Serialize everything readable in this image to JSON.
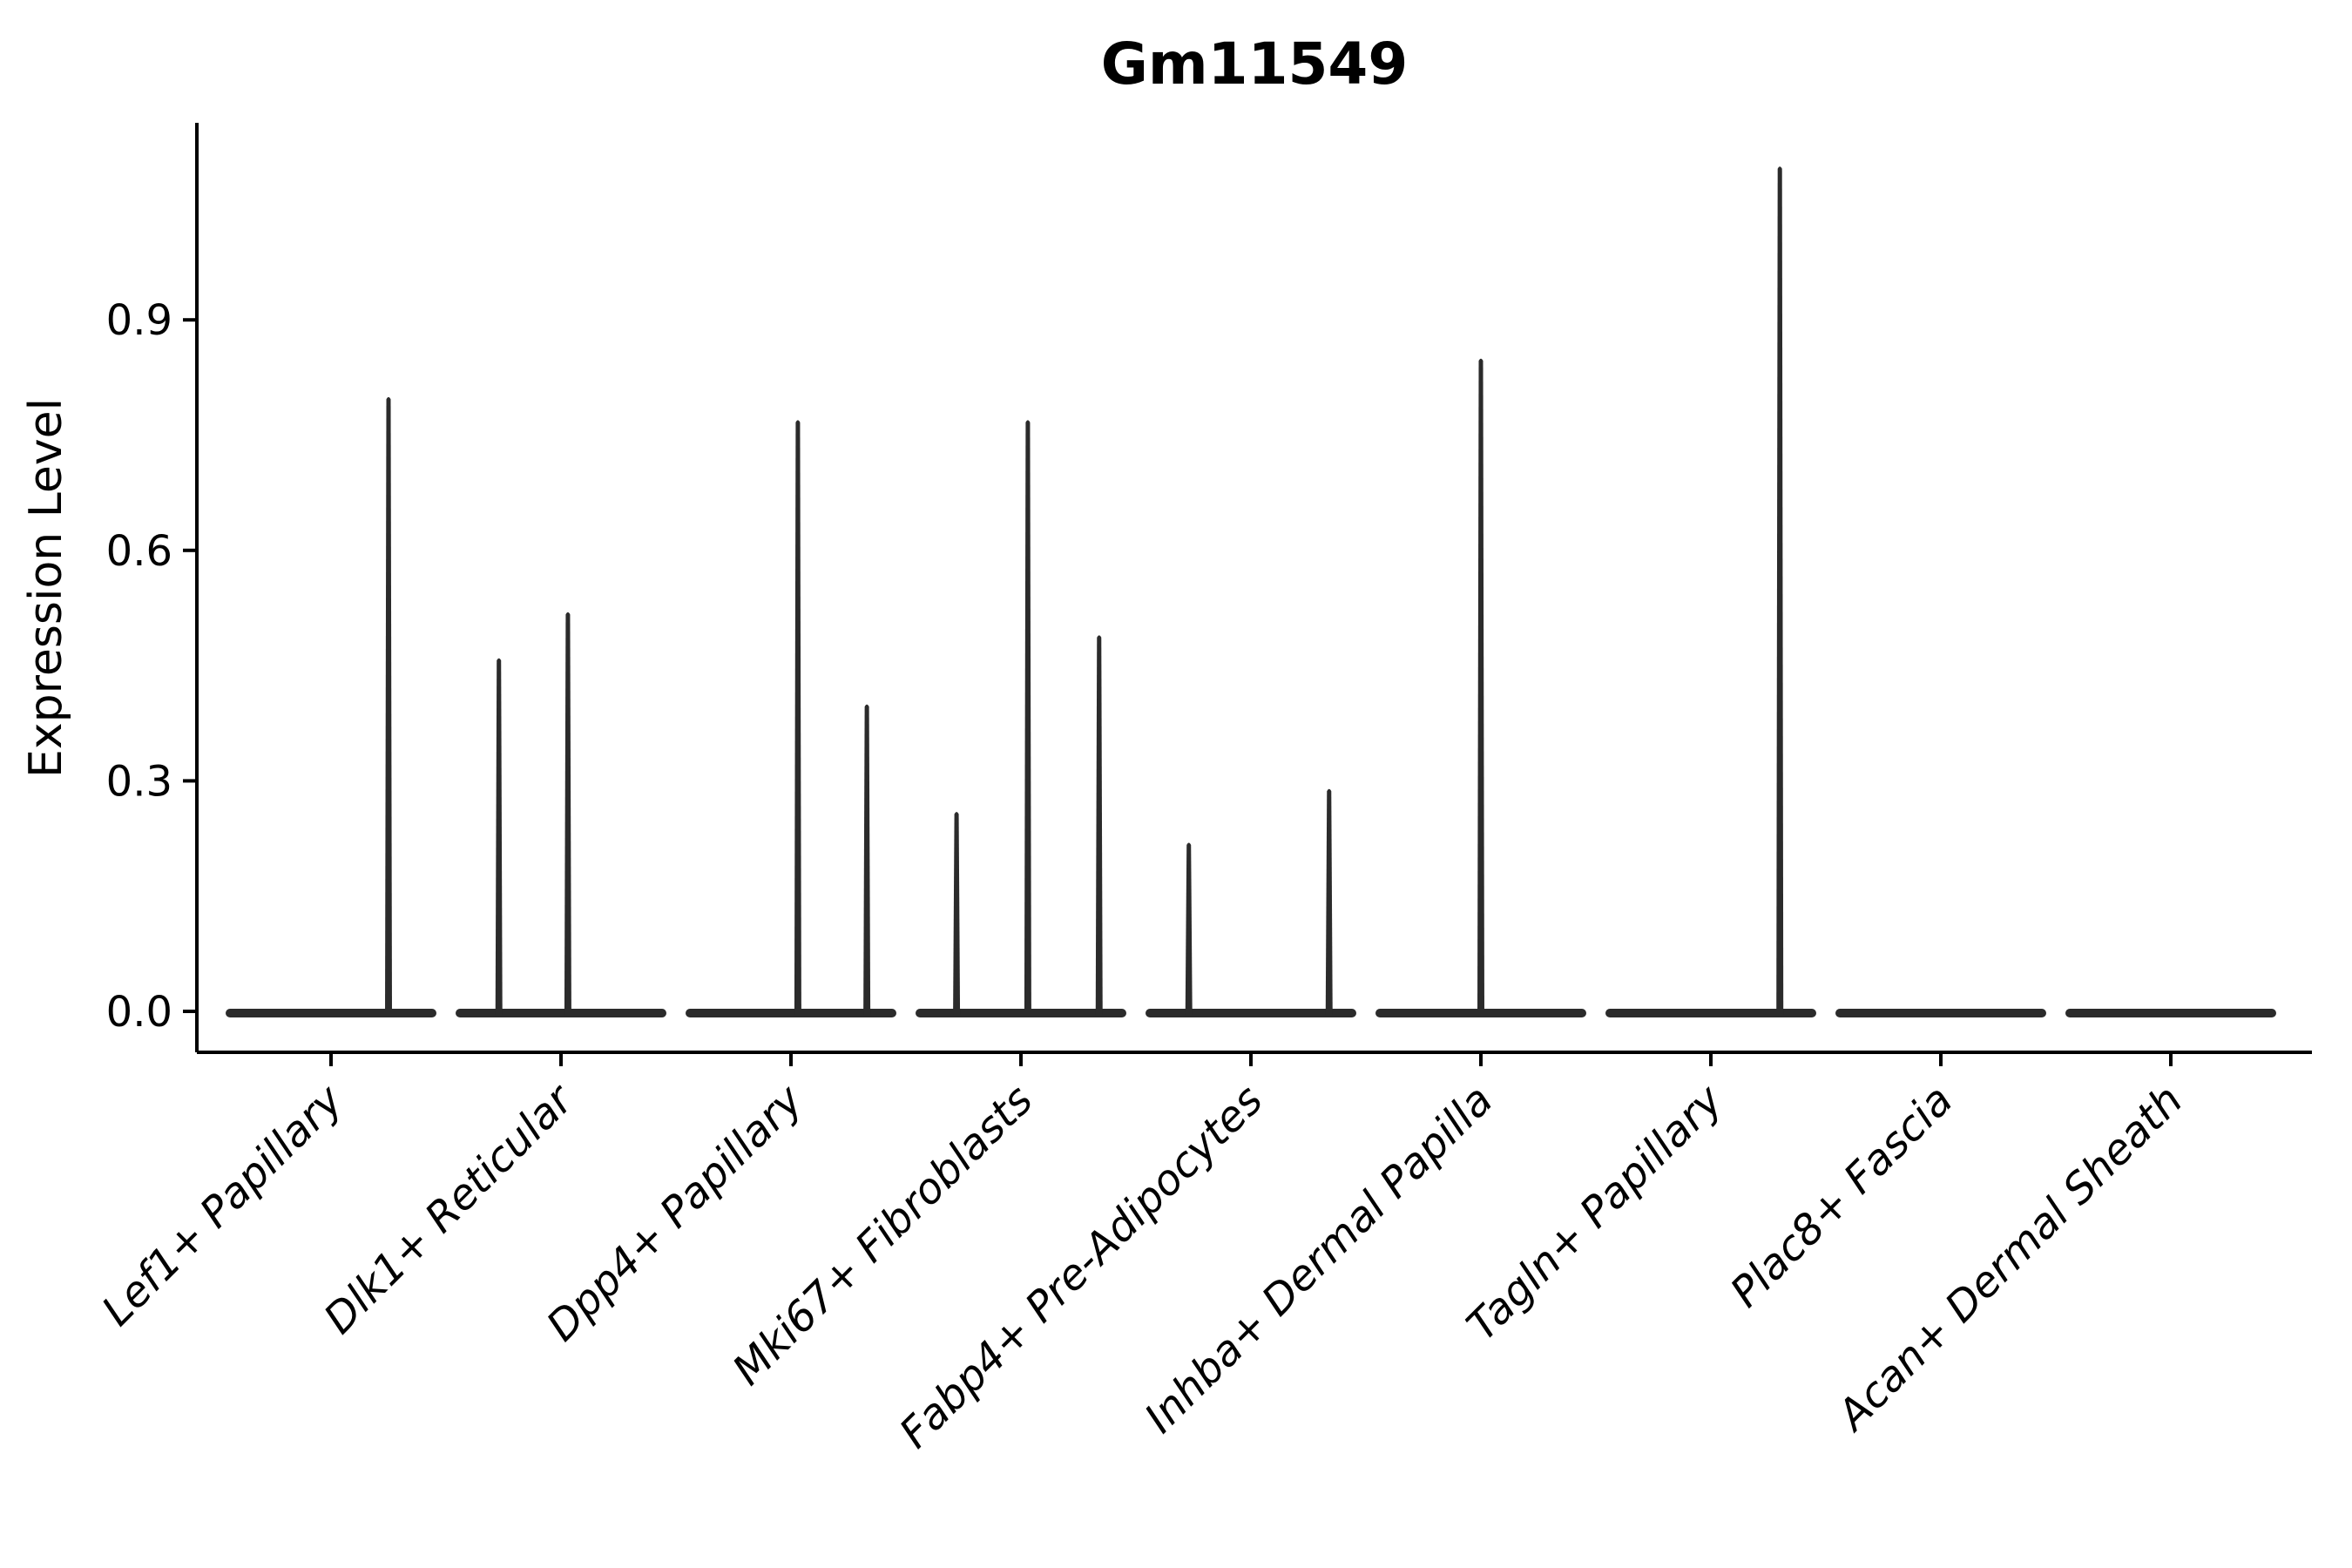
{
  "chart_data": {
    "type": "violin",
    "title": "Gm11549",
    "ylabel": "Expression Level",
    "xlabel": "",
    "grid": false,
    "legend": false,
    "background_color": "#ffffff",
    "violin_color": "#2b2b2b",
    "axis_color": "#000000",
    "ylim": [
      -0.05,
      1.16
    ],
    "ytick_labels": [
      "0.0",
      "0.3",
      "0.6",
      "0.9"
    ],
    "ytick_values": [
      0.0,
      0.3,
      0.6,
      0.9
    ],
    "categories": [
      "Lef1+ Papillary",
      "Dlk1+ Reticular",
      "Dpp4+ Papillary",
      "Mki67+ Fibroblasts",
      "Fabp4+ Pre-Adipocytes",
      "Inhba+ Dermal Papilla",
      "Tagln+ Papillary",
      "Plac8+ Fascia",
      "Acan+ Dermal Sheath"
    ],
    "spike_offset_unit": "fraction of category slot width from category center",
    "violins": [
      {
        "category": "Lef1+ Papillary",
        "base_value": 0.0,
        "max_value": 0.8,
        "spikes": [
          {
            "offset": 0.25,
            "value": 0.8
          }
        ]
      },
      {
        "category": "Dlk1+ Reticular",
        "base_value": 0.0,
        "max_value": 0.52,
        "spikes": [
          {
            "offset": -0.27,
            "value": 0.46
          },
          {
            "offset": 0.03,
            "value": 0.52
          }
        ]
      },
      {
        "category": "Dpp4+ Papillary",
        "base_value": 0.0,
        "max_value": 0.77,
        "spikes": [
          {
            "offset": 0.03,
            "value": 0.77
          },
          {
            "offset": 0.33,
            "value": 0.4
          }
        ]
      },
      {
        "category": "Mki67+ Fibroblasts",
        "base_value": 0.0,
        "max_value": 0.77,
        "spikes": [
          {
            "offset": -0.28,
            "value": 0.26
          },
          {
            "offset": 0.03,
            "value": 0.77
          },
          {
            "offset": 0.34,
            "value": 0.49
          }
        ]
      },
      {
        "category": "Fabp4+ Pre-Adipocytes",
        "base_value": 0.0,
        "max_value": 0.29,
        "spikes": [
          {
            "offset": -0.27,
            "value": 0.22
          },
          {
            "offset": 0.34,
            "value": 0.29
          }
        ]
      },
      {
        "category": "Inhba+ Dermal Papilla",
        "base_value": 0.0,
        "max_value": 0.85,
        "spikes": [
          {
            "offset": 0.0,
            "value": 0.85
          }
        ]
      },
      {
        "category": "Tagln+ Papillary",
        "base_value": 0.0,
        "max_value": 1.1,
        "spikes": [
          {
            "offset": 0.3,
            "value": 1.1
          }
        ]
      },
      {
        "category": "Plac8+ Fascia",
        "base_value": 0.0,
        "max_value": 0.0,
        "spikes": []
      },
      {
        "category": "Acan+ Dermal Sheath",
        "base_value": 0.0,
        "max_value": 0.0,
        "spikes": []
      }
    ]
  }
}
